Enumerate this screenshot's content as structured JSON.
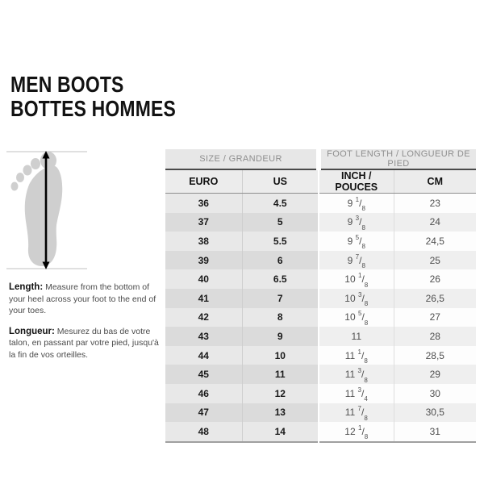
{
  "title": {
    "line1": "MEN BOOTS",
    "line2": "BOTTES HOMMES"
  },
  "instructions": {
    "length_label": "Length:",
    "length_text": "Measure from the bottom of your heel across your foot to the end of your toes.",
    "longueur_label": "Longueur:",
    "longueur_text": "Mesurez du bas de votre talon, en passant par votre pied, jusqu'à la fin de vos orteilles."
  },
  "table": {
    "group_headers": [
      {
        "label": "SIZE / GRANDEUR",
        "span": 2
      },
      {
        "label": "FOOT LENGTH / LONGUEUR DE PIED",
        "span": 2
      }
    ],
    "columns": [
      "EURO",
      "US",
      "INCH / POUCES",
      "CM"
    ],
    "rows": [
      [
        "36",
        "4.5",
        "9 1/8",
        "23"
      ],
      [
        "37",
        "5",
        "9 3/8",
        "24"
      ],
      [
        "38",
        "5.5",
        "9 5/8",
        "24,5"
      ],
      [
        "39",
        "6",
        "9 7/8",
        "25"
      ],
      [
        "40",
        "6.5",
        "10 1/8",
        "26"
      ],
      [
        "41",
        "7",
        "10 3/8",
        "26,5"
      ],
      [
        "42",
        "8",
        "10 5/8",
        "27"
      ],
      [
        "43",
        "9",
        "11",
        "28"
      ],
      [
        "44",
        "10",
        "11 1/8",
        "28,5"
      ],
      [
        "45",
        "11",
        "11 3/8",
        "29"
      ],
      [
        "46",
        "12",
        "11 3/4",
        "30"
      ],
      [
        "47",
        "13",
        "11 7/8",
        "30,5"
      ],
      [
        "48",
        "14",
        "12 1/8",
        "31"
      ]
    ]
  },
  "colors": {
    "size_col_light": "#e8e8e8",
    "size_col_dark": "#dbdbdb",
    "len_col_light": "#fdfdfd",
    "len_col_dark": "#efefef",
    "header_bg": "#ececec",
    "group_header_bg": "#e7e7e7",
    "group_header_text": "#8e8e8e",
    "header_divider": "#4a4a4a",
    "foot_fill": "#cfcfcf",
    "arrow": "#000000"
  }
}
